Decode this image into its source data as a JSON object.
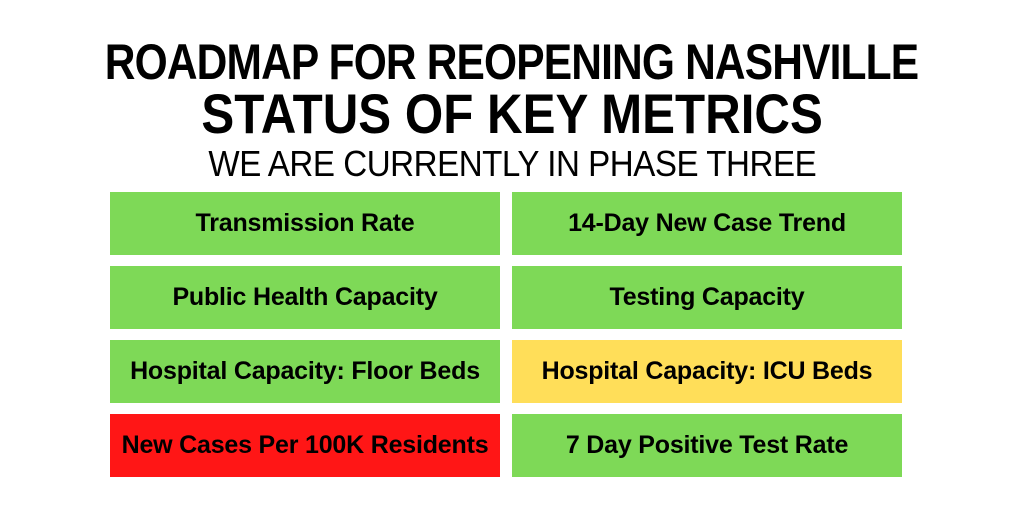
{
  "header": {
    "line1": "ROADMAP FOR REOPENING NASHVILLE",
    "line2": "STATUS OF KEY METRICS",
    "line3": "WE ARE CURRENTLY IN PHASE THREE"
  },
  "colors": {
    "green": "#7ED957",
    "yellow": "#FFDE59",
    "red": "#FF1616",
    "text": "#000000",
    "background": "#FFFFFF"
  },
  "metrics": [
    {
      "label": "Transmission Rate",
      "status": "green"
    },
    {
      "label": "14-Day New Case Trend",
      "status": "green"
    },
    {
      "label": "Public Health Capacity",
      "status": "green"
    },
    {
      "label": "Testing Capacity",
      "status": "green"
    },
    {
      "label": "Hospital Capacity: Floor Beds",
      "status": "green"
    },
    {
      "label": "Hospital Capacity: ICU Beds",
      "status": "yellow"
    },
    {
      "label": "New Cases Per 100K Residents",
      "status": "red"
    },
    {
      "label": "7 Day Positive Test Rate",
      "status": "green"
    }
  ],
  "chart_data": {
    "type": "table",
    "title": "Roadmap for Reopening Nashville — Status of Key Metrics",
    "subtitle": "We are currently in Phase Three",
    "columns": [
      "Metric",
      "Status color"
    ],
    "rows": [
      [
        "Transmission Rate",
        "green"
      ],
      [
        "14-Day New Case Trend",
        "green"
      ],
      [
        "Public Health Capacity",
        "green"
      ],
      [
        "Testing Capacity",
        "green"
      ],
      [
        "Hospital Capacity: Floor Beds",
        "green"
      ],
      [
        "Hospital Capacity: ICU Beds",
        "yellow"
      ],
      [
        "New Cases Per 100K Residents",
        "red"
      ],
      [
        "7 Day Positive Test Rate",
        "green"
      ]
    ],
    "layout": "2-column by 4-row grid of color-coded tiles, row-major order"
  }
}
